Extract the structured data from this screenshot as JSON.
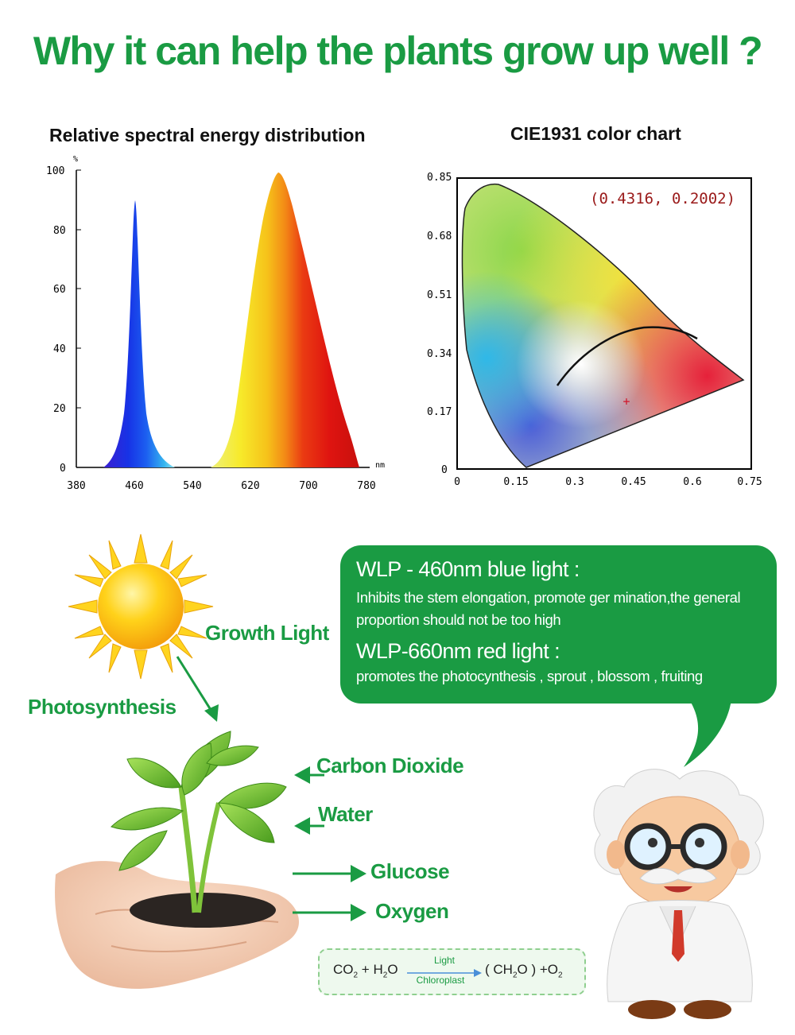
{
  "headline": "Why it can help the plants grow up well ?",
  "spectral_chart": {
    "title": "Relative spectral energy distribution",
    "y_unit": "%",
    "x_unit": "nm",
    "x_ticks": [
      "380",
      "460",
      "540",
      "620",
      "700",
      "780"
    ],
    "y_ticks": [
      "0",
      "20",
      "40",
      "60",
      "80",
      "100"
    ]
  },
  "cie_chart": {
    "title": "CIE1931 color chart",
    "coordinate_label": "(0.4316, 0.2002)",
    "x_ticks": [
      "0",
      "0.15",
      "0.3",
      "0.45",
      "0.6",
      "0.75"
    ],
    "y_ticks": [
      "0",
      "0.17",
      "0.34",
      "0.51",
      "0.68",
      "0.85"
    ]
  },
  "info_bubble": {
    "blue_heading": "WLP - 460nm blue light :",
    "blue_text": "Inhibits the stem elongation, promote ger mination,the general proportion should not be too high",
    "red_heading": "WLP-660nm red light :",
    "red_text": "promotes the photocynthesis , sprout , blossom , fruiting"
  },
  "labels": {
    "growth_light": "Growth Light",
    "photosynthesis": "Photosynthesis",
    "carbon_dioxide": "Carbon Dioxide",
    "water": "Water",
    "glucose": "Glucose",
    "oxygen": "Oxygen"
  },
  "formula": {
    "co2": "CO",
    "co2_sub": "2",
    "plus": "+",
    "h2o_h": "H",
    "h2o_sub": "2",
    "h2o_o": "O",
    "light": "Light",
    "chloroplast": "Chloroplast",
    "product_open": "( CH",
    "product_sub": "2",
    "product_close": "O ) +O",
    "o2_sub": "2"
  },
  "colors": {
    "brand_green": "#1a9b43",
    "bubble_green": "#1a9b43"
  }
}
